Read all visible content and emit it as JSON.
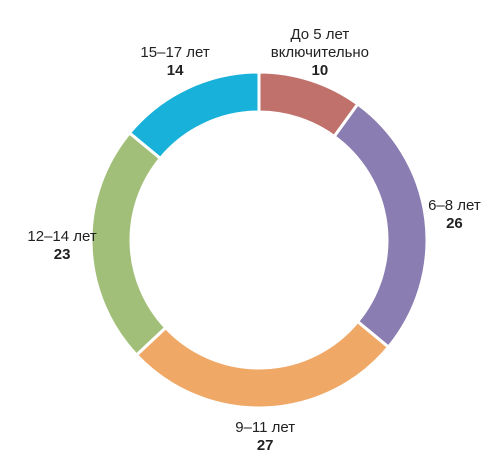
{
  "chart_data": {
    "type": "donut",
    "categories": [
      "До 5 лет включительно",
      "6–8 лет",
      "9–11 лет",
      "12–14 лет",
      "15–17 лет"
    ],
    "values": [
      10,
      26,
      27,
      23,
      14
    ],
    "colors": [
      "#c1716b",
      "#8a7db1",
      "#f0a867",
      "#a2bf79",
      "#18b1d9"
    ]
  }
}
